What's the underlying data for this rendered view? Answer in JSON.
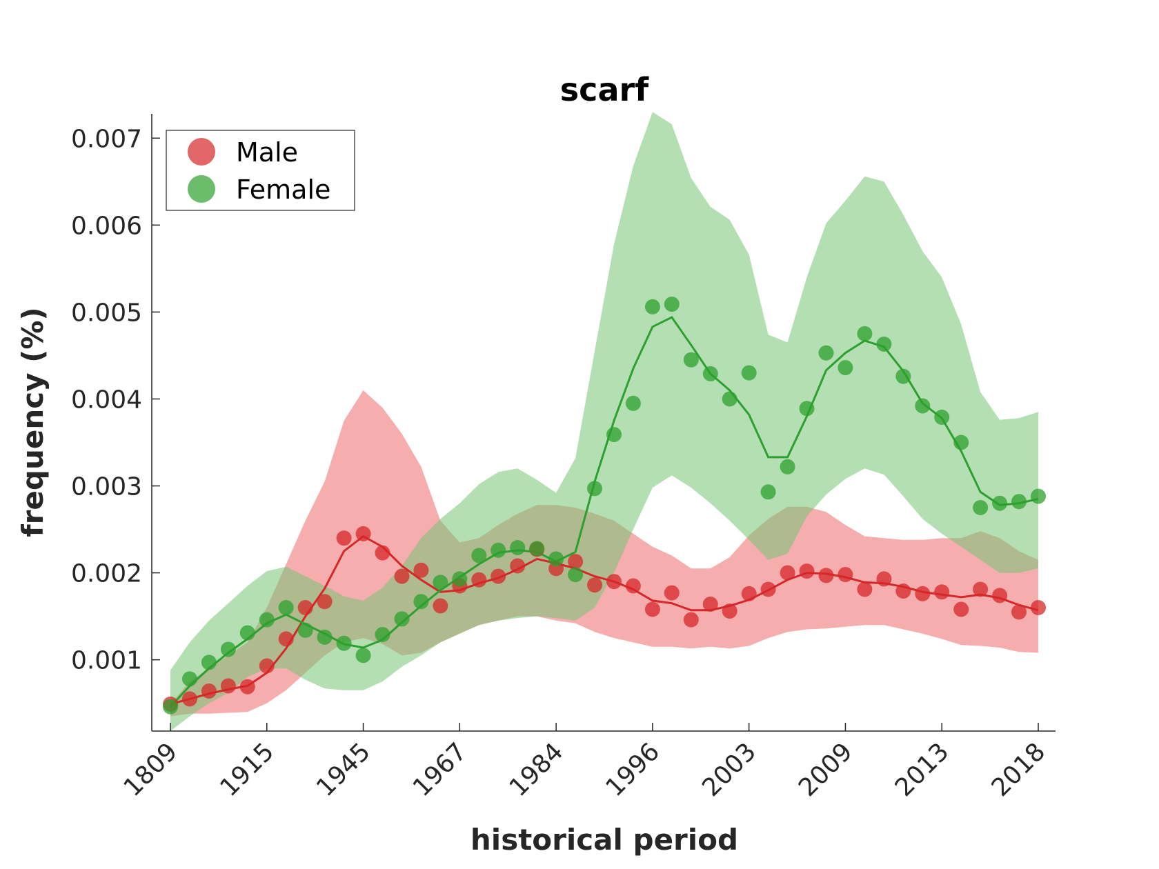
{
  "chart_data": {
    "type": "line",
    "title": "scarf",
    "xlabel": "historical period",
    "ylabel": "frequency (%)",
    "x_tick_labels": [
      "1809",
      "1915",
      "1945",
      "1967",
      "1984",
      "1996",
      "2003",
      "2009",
      "2013",
      "2018"
    ],
    "y_ticks": [
      0.001,
      0.002,
      0.003,
      0.004,
      0.005,
      0.006,
      0.007
    ],
    "y_tick_labels": [
      "0.001",
      "0.002",
      "0.003",
      "0.004",
      "0.005",
      "0.006",
      "0.007"
    ],
    "ylim": [
      0.00018,
      0.00728
    ],
    "legend_position": "top-left",
    "grid": false,
    "series": [
      {
        "name": "Male",
        "color": "#d62728",
        "band_color": "#ee6a6c",
        "points": [
          0.00049,
          0.00055,
          0.00064,
          0.0007,
          0.00069,
          0.00093,
          0.00124,
          0.0016,
          0.00167,
          0.0024,
          0.00245,
          0.00223,
          0.00196,
          0.00203,
          0.00162,
          0.00185,
          0.00192,
          0.00196,
          0.00208,
          0.00227,
          0.00205,
          0.00213,
          0.00186,
          0.0019,
          0.00185,
          0.00158,
          0.00177,
          0.00146,
          0.00164,
          0.00156,
          0.00176,
          0.00181,
          0.002,
          0.00202,
          0.00197,
          0.00198,
          0.00181,
          0.00193,
          0.00179,
          0.00176,
          0.00178,
          0.00158,
          0.00181,
          0.00174,
          0.00155,
          0.0016
        ],
        "smooth": [
          0.00049,
          0.00055,
          0.00061,
          0.00066,
          0.0007,
          0.00085,
          0.00113,
          0.0015,
          0.00182,
          0.00225,
          0.00242,
          0.0023,
          0.00208,
          0.00192,
          0.00178,
          0.0018,
          0.00188,
          0.00194,
          0.00204,
          0.00216,
          0.00211,
          0.00205,
          0.00196,
          0.0019,
          0.00181,
          0.00168,
          0.00165,
          0.00157,
          0.00157,
          0.00162,
          0.00169,
          0.0018,
          0.00192,
          0.002,
          0.00199,
          0.00195,
          0.00189,
          0.00188,
          0.00184,
          0.00178,
          0.00175,
          0.00172,
          0.00175,
          0.00171,
          0.00163,
          0.00157
        ],
        "upper": [
          0.00049,
          0.00075,
          0.0009,
          0.00105,
          0.0012,
          0.0016,
          0.0021,
          0.0026,
          0.00305,
          0.00375,
          0.0041,
          0.0039,
          0.0036,
          0.00322,
          0.0026,
          0.00235,
          0.0024,
          0.00255,
          0.00268,
          0.00278,
          0.00278,
          0.00275,
          0.00268,
          0.0026,
          0.00245,
          0.0023,
          0.0022,
          0.00205,
          0.00205,
          0.00218,
          0.00243,
          0.00262,
          0.00276,
          0.00276,
          0.0027,
          0.00255,
          0.00242,
          0.0024,
          0.00238,
          0.00238,
          0.0024,
          0.0024,
          0.00248,
          0.0024,
          0.00225,
          0.00215
        ],
        "lower": [
          0.00035,
          0.00038,
          0.00038,
          0.00039,
          0.0004,
          0.0005,
          0.00065,
          0.00085,
          0.00105,
          0.0012,
          0.00125,
          0.00118,
          0.00105,
          0.00108,
          0.0012,
          0.0013,
          0.0014,
          0.00145,
          0.0015,
          0.0015,
          0.00145,
          0.00142,
          0.00132,
          0.00125,
          0.0012,
          0.00115,
          0.00115,
          0.00113,
          0.00115,
          0.00113,
          0.00116,
          0.00125,
          0.00132,
          0.00135,
          0.00136,
          0.00138,
          0.0014,
          0.0014,
          0.00135,
          0.0013,
          0.00124,
          0.00117,
          0.00116,
          0.00114,
          0.00109,
          0.00108
        ]
      },
      {
        "name": "Female",
        "color": "#2ca02c",
        "band_color": "#74c474",
        "points": [
          0.00046,
          0.00078,
          0.00097,
          0.00112,
          0.00131,
          0.00146,
          0.0016,
          0.00134,
          0.00126,
          0.00119,
          0.00105,
          0.00129,
          0.00147,
          0.00167,
          0.00189,
          0.00193,
          0.0022,
          0.00226,
          0.00229,
          0.00228,
          0.00216,
          0.00198,
          0.00297,
          0.00359,
          0.00395,
          0.00506,
          0.00509,
          0.00445,
          0.00429,
          0.004,
          0.0043,
          0.00293,
          0.00322,
          0.00389,
          0.00453,
          0.00436,
          0.00475,
          0.00463,
          0.00426,
          0.00392,
          0.00379,
          0.0035,
          0.00275,
          0.0028,
          0.00282,
          0.00288
        ],
        "smooth": [
          0.00046,
          0.0007,
          0.0009,
          0.00108,
          0.00124,
          0.00142,
          0.00152,
          0.00141,
          0.0013,
          0.00118,
          0.00114,
          0.00123,
          0.00143,
          0.00162,
          0.0018,
          0.00195,
          0.0021,
          0.00223,
          0.00226,
          0.00224,
          0.00213,
          0.00224,
          0.00305,
          0.00375,
          0.00435,
          0.00483,
          0.00494,
          0.00462,
          0.00429,
          0.0041,
          0.00382,
          0.00333,
          0.00333,
          0.0038,
          0.00433,
          0.00453,
          0.00467,
          0.0046,
          0.00432,
          0.00395,
          0.00378,
          0.0034,
          0.00293,
          0.00278,
          0.0028,
          0.00285
        ],
        "upper": [
          0.00088,
          0.0012,
          0.00145,
          0.00165,
          0.00185,
          0.00202,
          0.00207,
          0.00196,
          0.00185,
          0.00173,
          0.00168,
          0.00183,
          0.00208,
          0.0024,
          0.00262,
          0.0028,
          0.00302,
          0.00316,
          0.0032,
          0.00307,
          0.00292,
          0.00332,
          0.00455,
          0.00578,
          0.00668,
          0.0073,
          0.00716,
          0.00654,
          0.00621,
          0.00606,
          0.00566,
          0.00474,
          0.00465,
          0.0054,
          0.00602,
          0.00628,
          0.00656,
          0.0065,
          0.00612,
          0.0057,
          0.0054,
          0.00486,
          0.00408,
          0.00376,
          0.00378,
          0.00385
        ],
        "lower": [
          0.00018,
          0.00035,
          0.0005,
          0.00062,
          0.0008,
          0.0009,
          0.0009,
          0.00077,
          0.00067,
          0.00065,
          0.00065,
          0.00075,
          0.00092,
          0.00105,
          0.0012,
          0.0013,
          0.0014,
          0.00145,
          0.00148,
          0.0015,
          0.00148,
          0.00145,
          0.0016,
          0.002,
          0.0025,
          0.00298,
          0.00312,
          0.00298,
          0.0028,
          0.0026,
          0.00238,
          0.00215,
          0.00222,
          0.00265,
          0.0029,
          0.00308,
          0.0032,
          0.00313,
          0.00288,
          0.00262,
          0.00245,
          0.0023,
          0.00215,
          0.002,
          0.002,
          0.00205
        ]
      }
    ]
  }
}
